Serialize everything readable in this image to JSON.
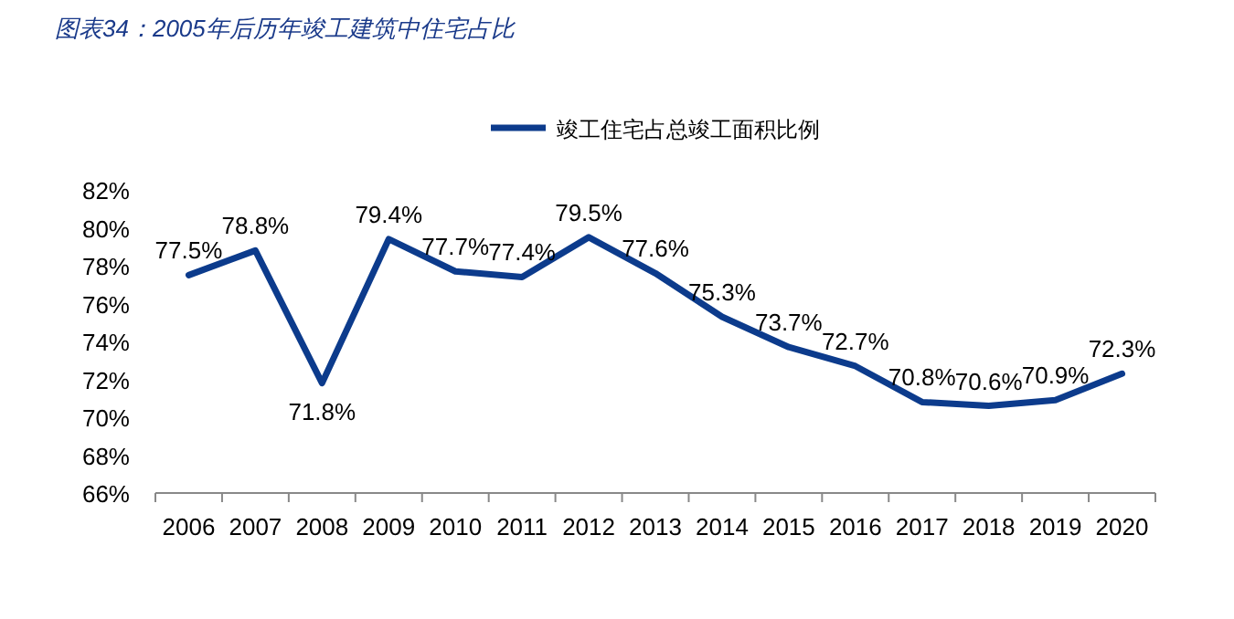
{
  "chart_data": {
    "type": "line",
    "title": "图表34：2005年后历年竣工建筑中住宅占比",
    "categories": [
      "2006",
      "2007",
      "2008",
      "2009",
      "2010",
      "2011",
      "2012",
      "2013",
      "2014",
      "2015",
      "2016",
      "2017",
      "2018",
      "2019",
      "2020"
    ],
    "series": [
      {
        "name": "竣工住宅占总竣工面积比例",
        "color": "#0c3b8c",
        "values": [
          77.5,
          78.8,
          71.8,
          79.4,
          77.7,
          77.4,
          79.5,
          77.6,
          75.3,
          73.7,
          72.7,
          70.8,
          70.6,
          70.9,
          72.3
        ],
        "value_labels": [
          "77.5%",
          "78.8%",
          "71.8%",
          "79.4%",
          "77.7%",
          "77.4%",
          "79.5%",
          "77.6%",
          "75.3%",
          "73.7%",
          "72.7%",
          "70.8%",
          "70.6%",
          "70.9%",
          "72.3%"
        ]
      }
    ],
    "ylim": [
      66,
      82
    ],
    "yticks": [
      {
        "value": 66,
        "label": "66%"
      },
      {
        "value": 68,
        "label": "68%"
      },
      {
        "value": 70,
        "label": "70%"
      },
      {
        "value": 72,
        "label": "72%"
      },
      {
        "value": 74,
        "label": "74%"
      },
      {
        "value": 76,
        "label": "76%"
      },
      {
        "value": 78,
        "label": "78%"
      },
      {
        "value": 80,
        "label": "80%"
      },
      {
        "value": 82,
        "label": "82%"
      }
    ],
    "grid": false,
    "legend": "top",
    "marker": "none",
    "line_style": "solid"
  }
}
